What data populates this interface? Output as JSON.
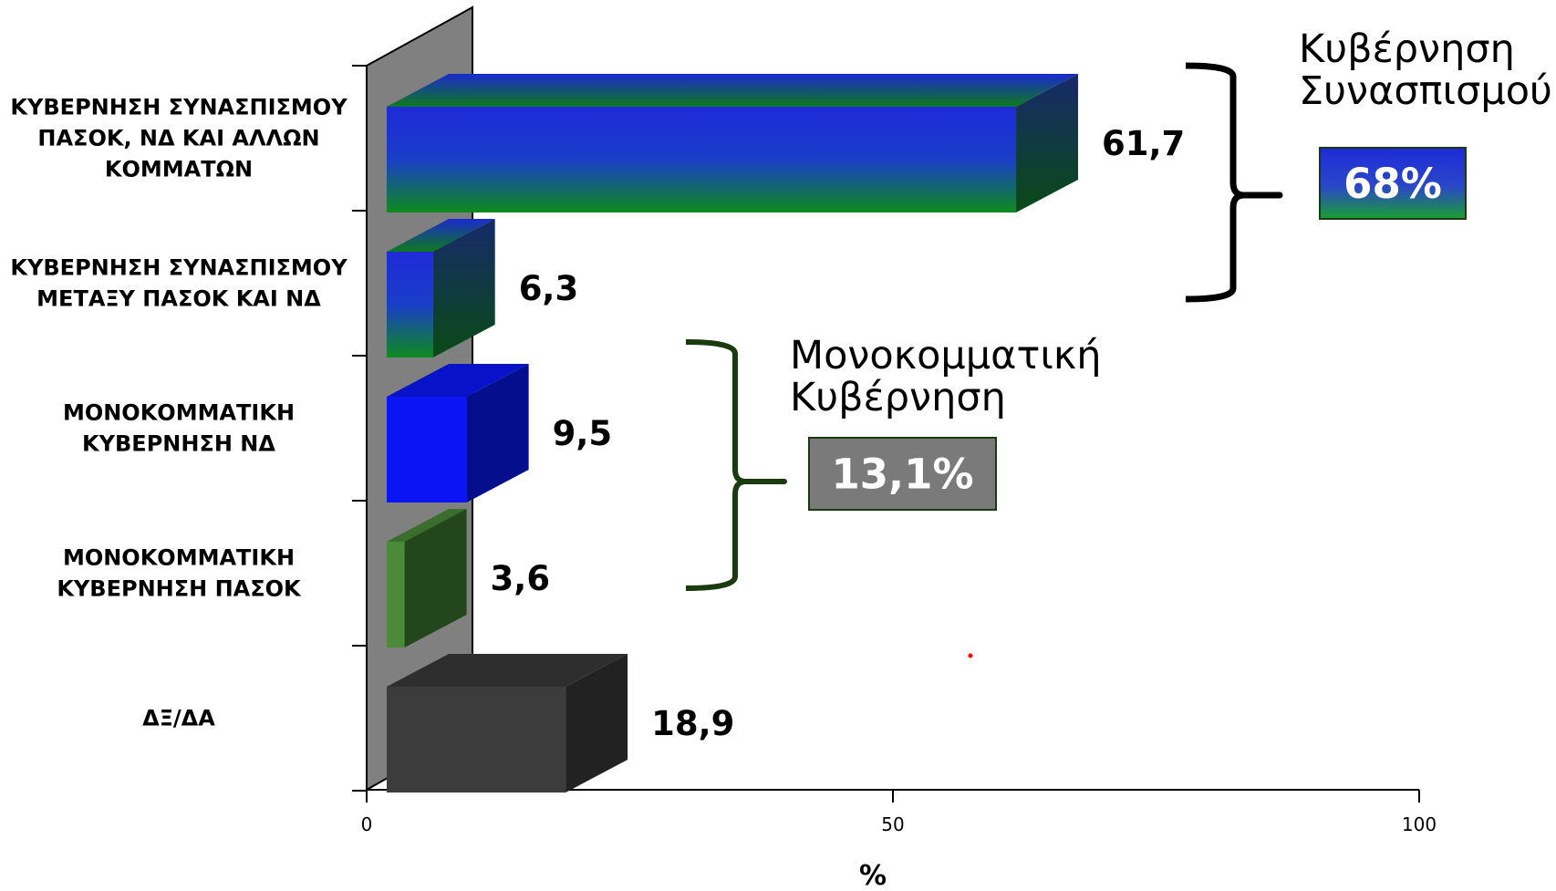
{
  "chart_data": {
    "type": "bar",
    "orientation": "horizontal",
    "style": "3d",
    "categories": [
      [
        "ΚΥΒΕΡΝΗΣΗ ΣΥΝΑΣΠΙΣΜΟΥ",
        "ΠΑΣΟΚ, ΝΔ ΚΑΙ ΑΛΛΩΝ",
        "ΚΟΜΜΑΤΩΝ"
      ],
      [
        "ΚΥΒΕΡΝΗΣΗ ΣΥΝΑΣΠΙΣΜΟΥ",
        "ΜΕΤΑΞΥ ΠΑΣΟΚ ΚΑΙ ΝΔ"
      ],
      [
        "ΜΟΝΟΚΟΜΜΑΤΙΚΗ",
        "ΚΥΒΕΡΝΗΣΗ ΝΔ"
      ],
      [
        "ΜΟΝΟΚΟΜΜΑΤΙΚΗ",
        "ΚΥΒΕΡΝΗΣΗ ΠΑΣΟΚ"
      ],
      [
        "ΔΞ/ΔΑ"
      ]
    ],
    "values": [
      61.7,
      6.3,
      9.5,
      3.6,
      18.9
    ],
    "value_labels": [
      "61,7",
      "6,3",
      "9,5",
      "3,6",
      "18,9"
    ],
    "bar_colors": [
      "gradient-blue-green",
      "gradient-blue-green",
      "#0a14f5",
      "#4a8a38",
      "#3c3c3c"
    ],
    "xlabel": "%",
    "xlim": [
      0,
      100
    ],
    "xticks": [
      "0",
      "50",
      "100"
    ],
    "grid": false,
    "groups": [
      {
        "title": [
          "Κυβέρνηση",
          "Συνασπισμού"
        ],
        "value": "68%",
        "covers": [
          0,
          1
        ],
        "brace_color": "#000000",
        "badge_color": "gradient-blue-green"
      },
      {
        "title": [
          "Μονοκομματική",
          "Κυβέρνηση"
        ],
        "value": "13,1%",
        "covers": [
          2,
          3
        ],
        "brace_color": "#1a3a10",
        "badge_color": "#7a7a7a"
      }
    ]
  },
  "colors": {
    "wall": "#808080",
    "blue": "#0a14f5",
    "green": "#108a20",
    "dark_green_brace": "#1a3a10",
    "badge_border": "#1a3a10"
  }
}
